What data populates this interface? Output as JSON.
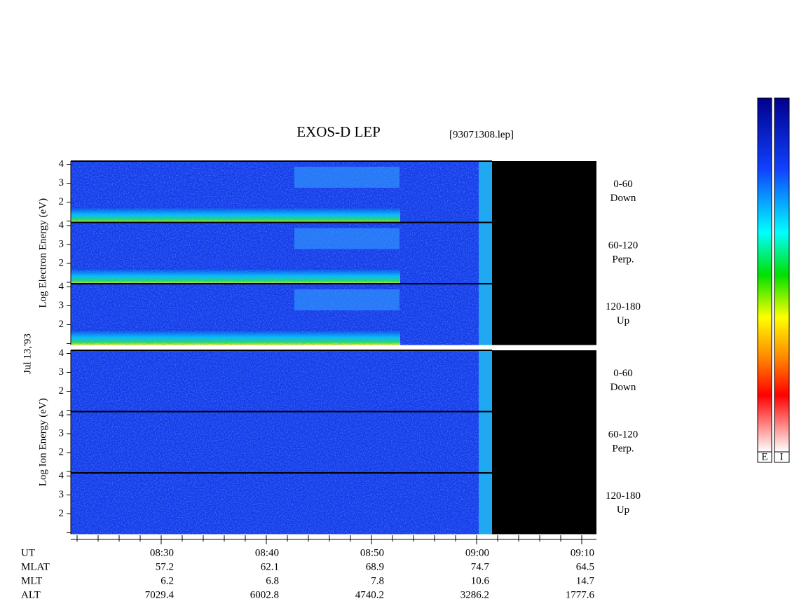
{
  "title": "EXOS-D LEP",
  "file_name": "[93071308.lep]",
  "date_label": "Jul 13,'93",
  "electron": {
    "axis_label": "Log Electron Energy (eV)",
    "yticks": [
      "2",
      "3",
      "4"
    ],
    "panels": [
      [
        "0-60",
        "Down"
      ],
      [
        "60-120",
        "Perp."
      ],
      [
        "120-180",
        "Up"
      ]
    ]
  },
  "ion": {
    "axis_label": "Log Ion Energy (eV)",
    "yticks": [
      "2",
      "3",
      "4"
    ],
    "panels": [
      [
        "0-60",
        "Down"
      ],
      [
        "60-120",
        "Perp."
      ],
      [
        "120-180",
        "Up"
      ]
    ]
  },
  "footer": {
    "row_labels": [
      "UT",
      "MLAT",
      "MLT",
      "ALT"
    ],
    "columns": [
      [
        "08:30",
        "57.2",
        "6.2",
        "7029.4"
      ],
      [
        "08:40",
        "62.1",
        "6.8",
        "6002.8"
      ],
      [
        "08:50",
        "68.9",
        "7.8",
        "4740.2"
      ],
      [
        "09:00",
        "74.7",
        "10.6",
        "3286.2"
      ],
      [
        "09:10",
        "64.5",
        "14.7",
        "1777.6"
      ]
    ]
  },
  "colorbar_labels": [
    "E",
    "I"
  ]
}
